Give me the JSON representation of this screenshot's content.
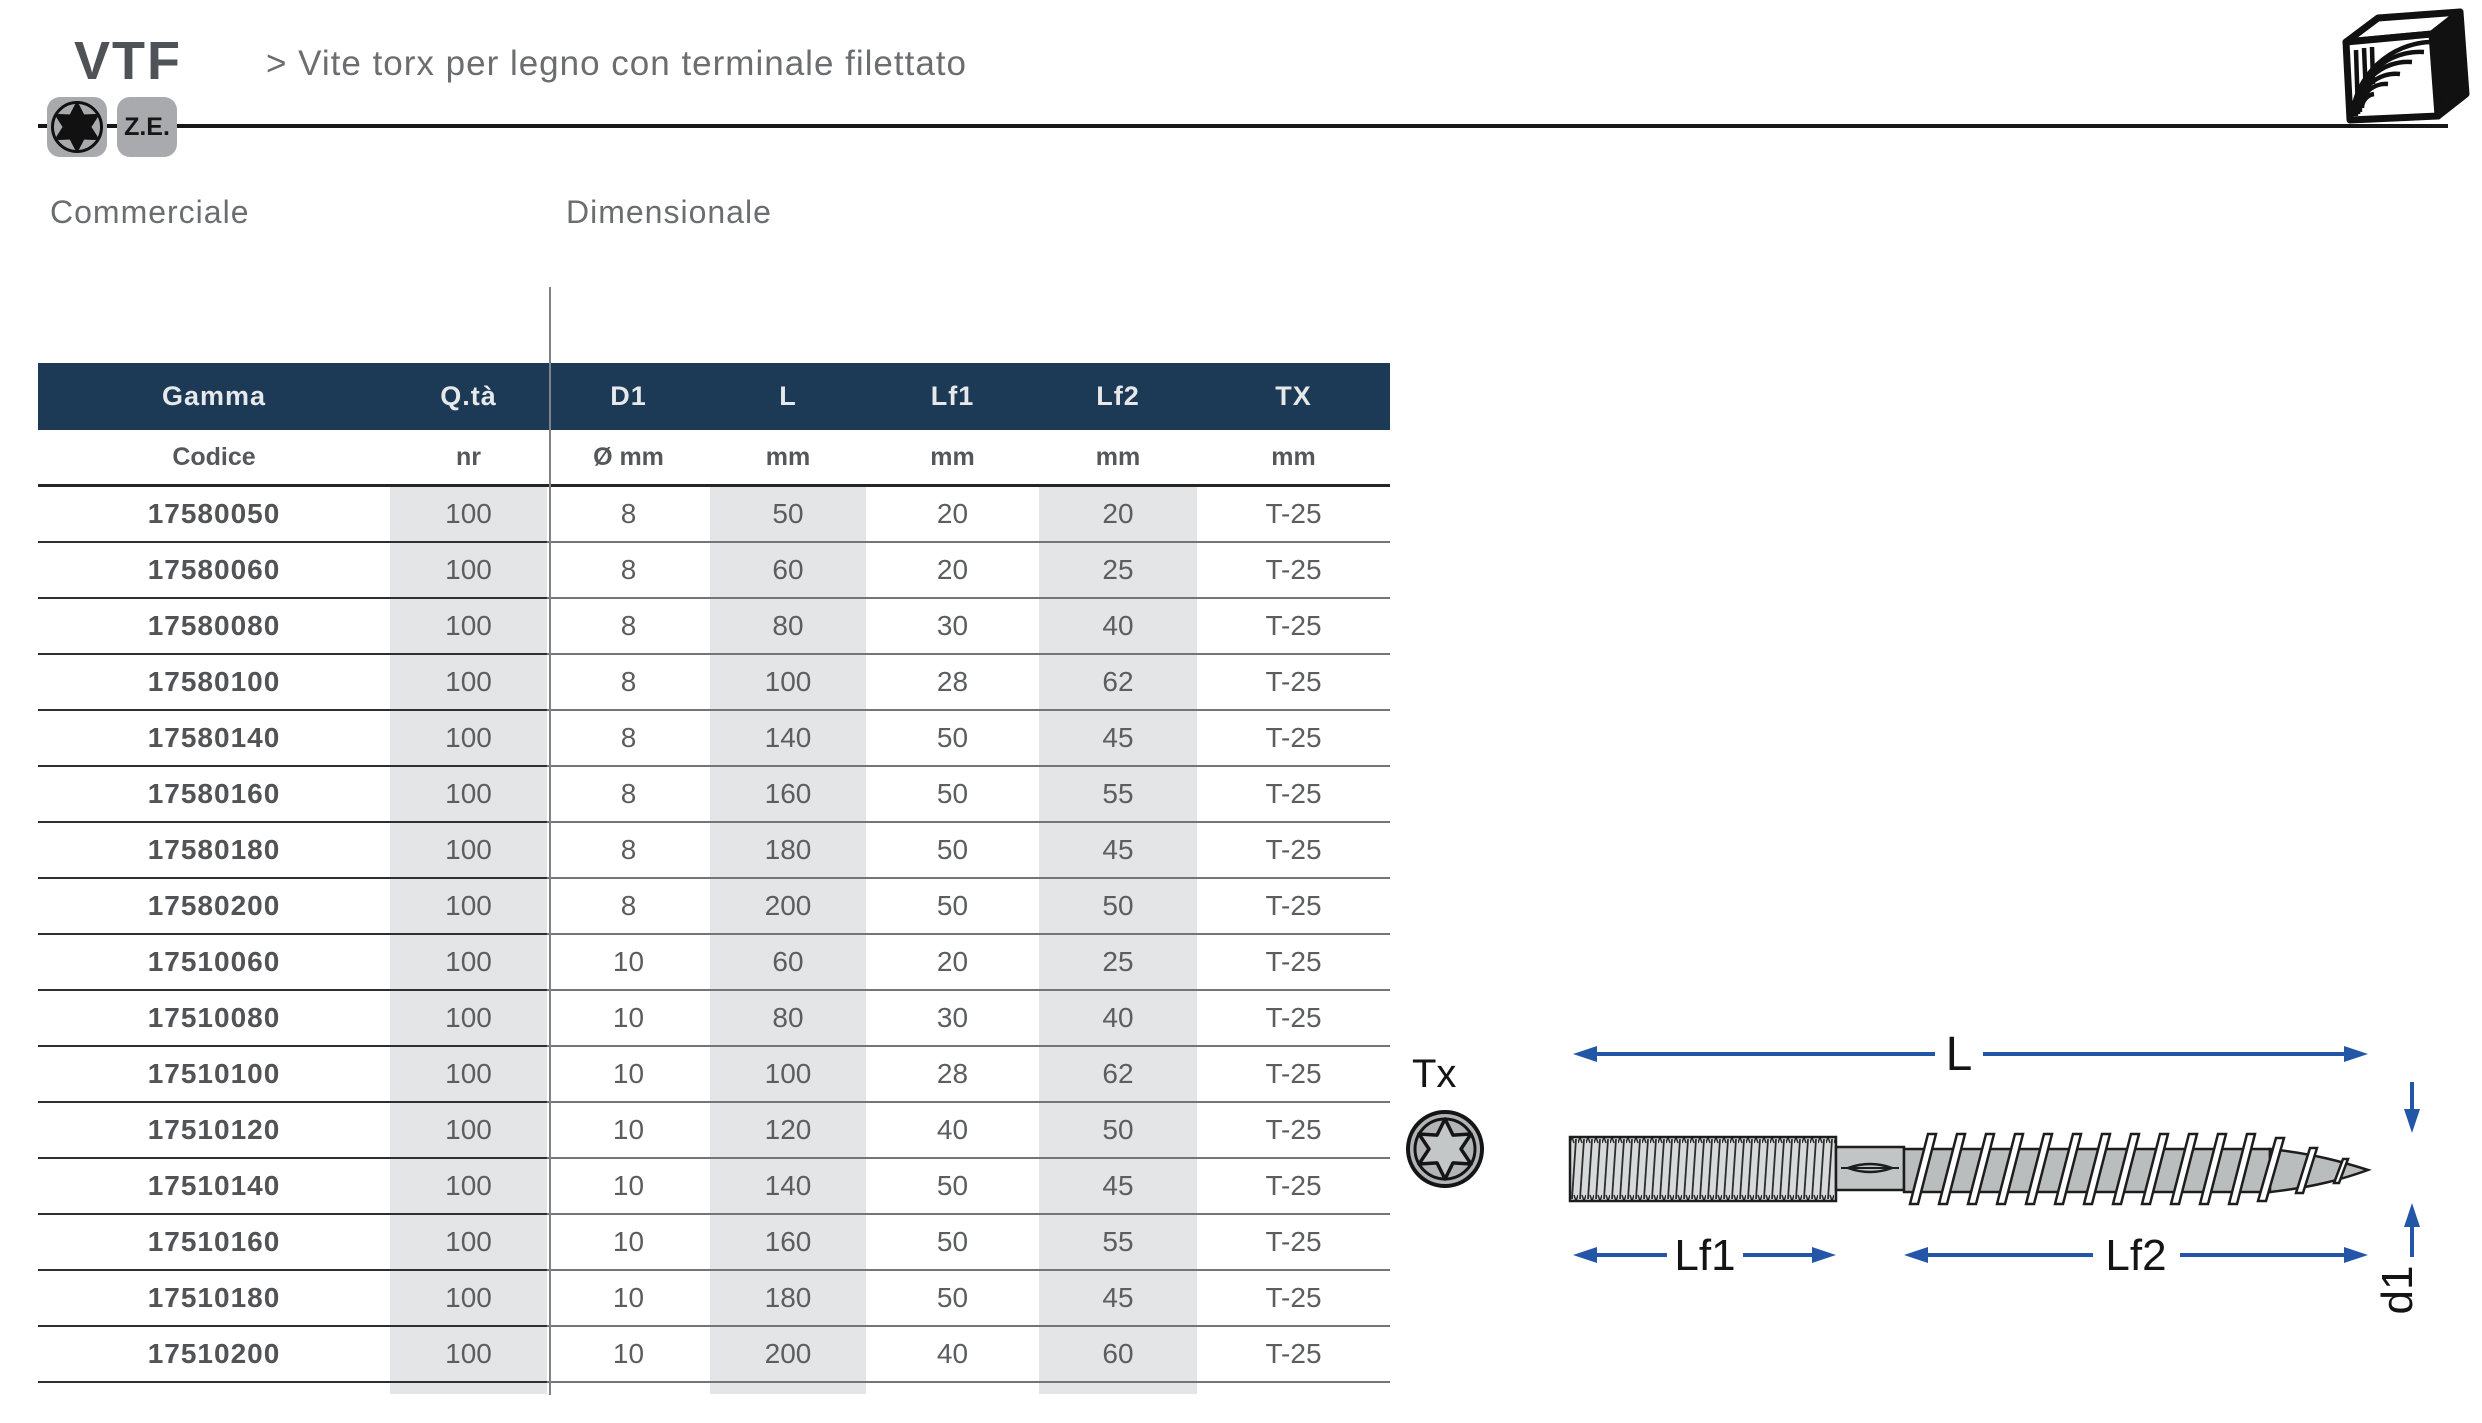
{
  "header": {
    "product_code": "VTF",
    "subtitle": "> Vite torx per legno con terminale filettato",
    "badge_ze": "Z.E.",
    "icons": {
      "drive_badge": "torx-star-icon",
      "material": "wood-block-icon"
    }
  },
  "sections": {
    "commercial": "Commerciale",
    "dimensional": "Dimensionale"
  },
  "table": {
    "columns": [
      "Gamma",
      "Q.tà",
      "D1",
      "L",
      "Lf1",
      "Lf2",
      "TX"
    ],
    "units": [
      "Codice",
      "nr",
      "Ø mm",
      "mm",
      "mm",
      "mm",
      "mm"
    ],
    "rows": [
      [
        "17580050",
        "100",
        "8",
        "50",
        "20",
        "20",
        "T-25"
      ],
      [
        "17580060",
        "100",
        "8",
        "60",
        "20",
        "25",
        "T-25"
      ],
      [
        "17580080",
        "100",
        "8",
        "80",
        "30",
        "40",
        "T-25"
      ],
      [
        "17580100",
        "100",
        "8",
        "100",
        "28",
        "62",
        "T-25"
      ],
      [
        "17580140",
        "100",
        "8",
        "140",
        "50",
        "45",
        "T-25"
      ],
      [
        "17580160",
        "100",
        "8",
        "160",
        "50",
        "55",
        "T-25"
      ],
      [
        "17580180",
        "100",
        "8",
        "180",
        "50",
        "45",
        "T-25"
      ],
      [
        "17580200",
        "100",
        "8",
        "200",
        "50",
        "50",
        "T-25"
      ],
      [
        "17510060",
        "100",
        "10",
        "60",
        "20",
        "25",
        "T-25"
      ],
      [
        "17510080",
        "100",
        "10",
        "80",
        "30",
        "40",
        "T-25"
      ],
      [
        "17510100",
        "100",
        "10",
        "100",
        "28",
        "62",
        "T-25"
      ],
      [
        "17510120",
        "100",
        "10",
        "120",
        "40",
        "50",
        "T-25"
      ],
      [
        "17510140",
        "100",
        "10",
        "140",
        "50",
        "45",
        "T-25"
      ],
      [
        "17510160",
        "100",
        "10",
        "160",
        "50",
        "55",
        "T-25"
      ],
      [
        "17510180",
        "100",
        "10",
        "180",
        "50",
        "45",
        "T-25"
      ],
      [
        "17510200",
        "100",
        "10",
        "200",
        "40",
        "60",
        "T-25"
      ]
    ]
  },
  "diagram": {
    "drive_label": "Tx",
    "dim_length": "L",
    "dim_lf1": "Lf1",
    "dim_lf2": "Lf2",
    "dim_d1": "d1"
  },
  "colors": {
    "header_bg": "#1c3a56",
    "column_shade": "#e4e5e7",
    "badge_bg": "#a8aaad",
    "dimension_blue": "#2456a8",
    "text_gray": "#5b5d5f"
  }
}
